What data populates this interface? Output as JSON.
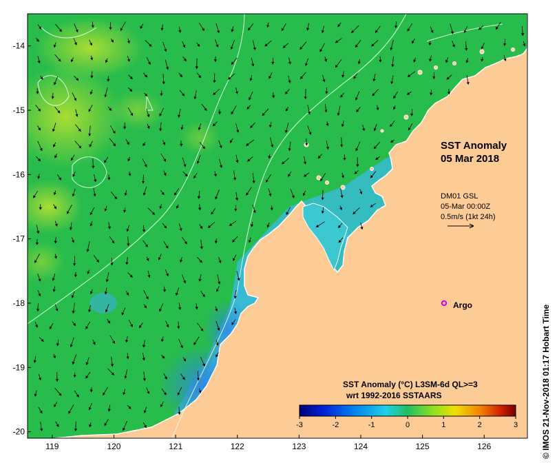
{
  "map": {
    "title_line1": "SST Anomaly",
    "title_line2": "05 Mar 2018",
    "current_source": "DM01 GSL",
    "current_time": "05-Mar 00:00Z",
    "current_scale": "0.5m/s (1kt 24h)",
    "argo_label": "Argo",
    "legend_title_line1": "SST Anomaly (°C) L3SM-6d QL>=3",
    "legend_title_line2": "wrt 1992-2016 SSTAARS",
    "copyright": "© IMOS 21-Nov-2018 01:17 Hobart Time",
    "argo_float": {
      "lon": 125.35,
      "lat": -18.0,
      "color": "#e000e0"
    },
    "colors": {
      "land": "#fccb96",
      "ocean_anomaly_near_0": "#22c04a",
      "ocean_anomaly_warm": "#a8e028",
      "ocean_anomaly_cool": "#30b8e8",
      "ocean_anomaly_cold": "#2a7ee6",
      "arrow": "#000000",
      "contour": "#ffffff"
    },
    "x_axis": {
      "ticks": [
        119,
        120,
        121,
        122,
        123,
        124,
        125,
        126
      ],
      "labels": [
        "119",
        "120",
        "121",
        "122",
        "123",
        "124",
        "125",
        "126"
      ],
      "range": [
        118.6,
        126.7
      ]
    },
    "y_axis": {
      "ticks": [
        -14,
        -15,
        -16,
        -17,
        -18,
        -19,
        -20
      ],
      "labels": [
        "-14",
        "-15",
        "-16",
        "-17",
        "-18",
        "-19",
        "-20"
      ],
      "range": [
        -20.1,
        -13.5
      ]
    },
    "colorbar": {
      "ticks": [
        -3,
        -2,
        -1,
        0,
        1,
        2,
        3
      ],
      "labels": [
        "-3",
        "-2",
        "-1",
        "0",
        "1",
        "2",
        "3"
      ],
      "range": [
        -3,
        3
      ],
      "colors": [
        "#00007a",
        "#0020d8",
        "#0080f0",
        "#20d0e8",
        "#20c060",
        "#90e020",
        "#f0e000",
        "#f08000",
        "#d02000",
        "#780000"
      ]
    }
  }
}
